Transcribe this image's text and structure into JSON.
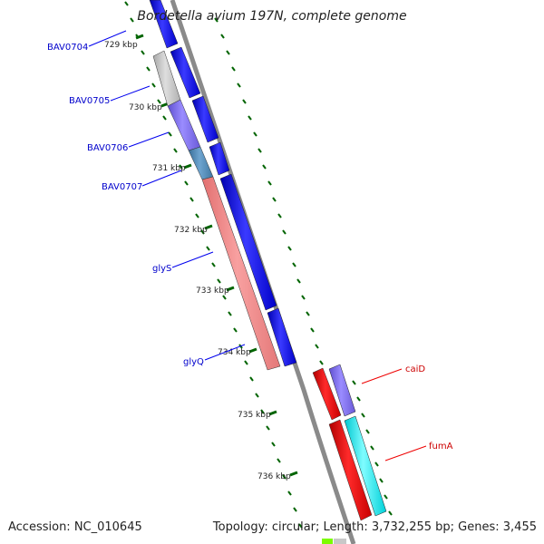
{
  "title": "Bordetella avium 197N, complete genome",
  "accession_text": "Accession: NC_010645",
  "summary_text": "Topology: circular; Length: 3,732,255 bp; Genes: 3,455",
  "ticks": [
    {
      "label": "729 kbp"
    },
    {
      "label": "730 kbp"
    },
    {
      "label": "731 kbp"
    },
    {
      "label": "732 kbp"
    },
    {
      "label": "733 kbp"
    },
    {
      "label": "734 kbp"
    },
    {
      "label": "735 kbp"
    },
    {
      "label": "736 kbp"
    }
  ],
  "gene_labels": [
    {
      "text": "BAV0704",
      "color": "#0000cc"
    },
    {
      "text": "BAV0705",
      "color": "#0000cc"
    },
    {
      "text": "BAV0706",
      "color": "#0000cc"
    },
    {
      "text": "BAV0707",
      "color": "#0000cc"
    },
    {
      "text": "glyS",
      "color": "#0000cc"
    },
    {
      "text": "glyQ",
      "color": "#0000cc"
    },
    {
      "text": "caiD",
      "color": "#cc0000"
    },
    {
      "text": "fumA",
      "color": "#cc0000"
    }
  ],
  "colors": {
    "blue_feature": "#0000ee",
    "red_feature": "#ee0000",
    "pink_feature": "#f08080",
    "lavender_feature": "#7b68ee",
    "steel_feature": "#4682b4",
    "gray_feature": "#b8b8b8",
    "cyan_feature": "#00e5ee",
    "backbone": "#888888",
    "tick_green": "#006400",
    "tick_text": "#333333"
  }
}
